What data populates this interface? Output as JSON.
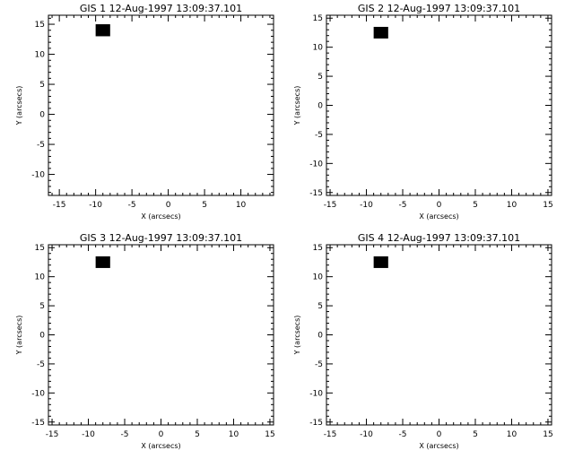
{
  "chart_data": [
    {
      "type": "scatter",
      "title": "GIS 1 12-Aug-1997 13:09:37.101",
      "xlabel": "X (arcsecs)",
      "ylabel": "Y (arcsecs)",
      "xlim": [
        -16.5,
        14.5
      ],
      "ylim": [
        -13.5,
        16.5
      ],
      "xticks": [
        -15,
        -10,
        -5,
        0,
        5,
        10
      ],
      "yticks": [
        -10,
        -5,
        0,
        5,
        10,
        15
      ],
      "pixel": {
        "x": [
          -10,
          -8
        ],
        "y": [
          13,
          15
        ],
        "color": "#000000"
      }
    },
    {
      "type": "scatter",
      "title": "GIS 2 12-Aug-1997 13:09:37.101",
      "xlabel": "X (arcsecs)",
      "ylabel": "Y (arcsecs)",
      "xlim": [
        -15.5,
        15.5
      ],
      "ylim": [
        -15.5,
        15.5
      ],
      "xticks": [
        -15,
        -10,
        -5,
        0,
        5,
        10,
        15
      ],
      "yticks": [
        -15,
        -10,
        -5,
        0,
        5,
        10,
        15
      ],
      "pixel": {
        "x": [
          -9,
          -7
        ],
        "y": [
          11.5,
          13.5
        ],
        "color": "#000000"
      }
    },
    {
      "type": "scatter",
      "title": "GIS 3 12-Aug-1997 13:09:37.101",
      "xlabel": "X (arcsecs)",
      "ylabel": "Y (arcsecs)",
      "xlim": [
        -15.5,
        15.5
      ],
      "ylim": [
        -15.5,
        15.5
      ],
      "xticks": [
        -15,
        -10,
        -5,
        0,
        5,
        10,
        15
      ],
      "yticks": [
        -15,
        -10,
        -5,
        0,
        5,
        10,
        15
      ],
      "pixel": {
        "x": [
          -9,
          -7
        ],
        "y": [
          11.5,
          13.5
        ],
        "color": "#000000"
      }
    },
    {
      "type": "scatter",
      "title": "GIS 4 12-Aug-1997 13:09:37.101",
      "xlabel": "X (arcsecs)",
      "ylabel": "Y (arcsecs)",
      "xlim": [
        -15.5,
        15.5
      ],
      "ylim": [
        -15.5,
        15.5
      ],
      "xticks": [
        -15,
        -10,
        -5,
        0,
        5,
        10,
        15
      ],
      "yticks": [
        -15,
        -10,
        -5,
        0,
        5,
        10,
        15
      ],
      "pixel": {
        "x": [
          -9,
          -7
        ],
        "y": [
          11.5,
          13.5
        ],
        "color": "#000000"
      }
    }
  ]
}
